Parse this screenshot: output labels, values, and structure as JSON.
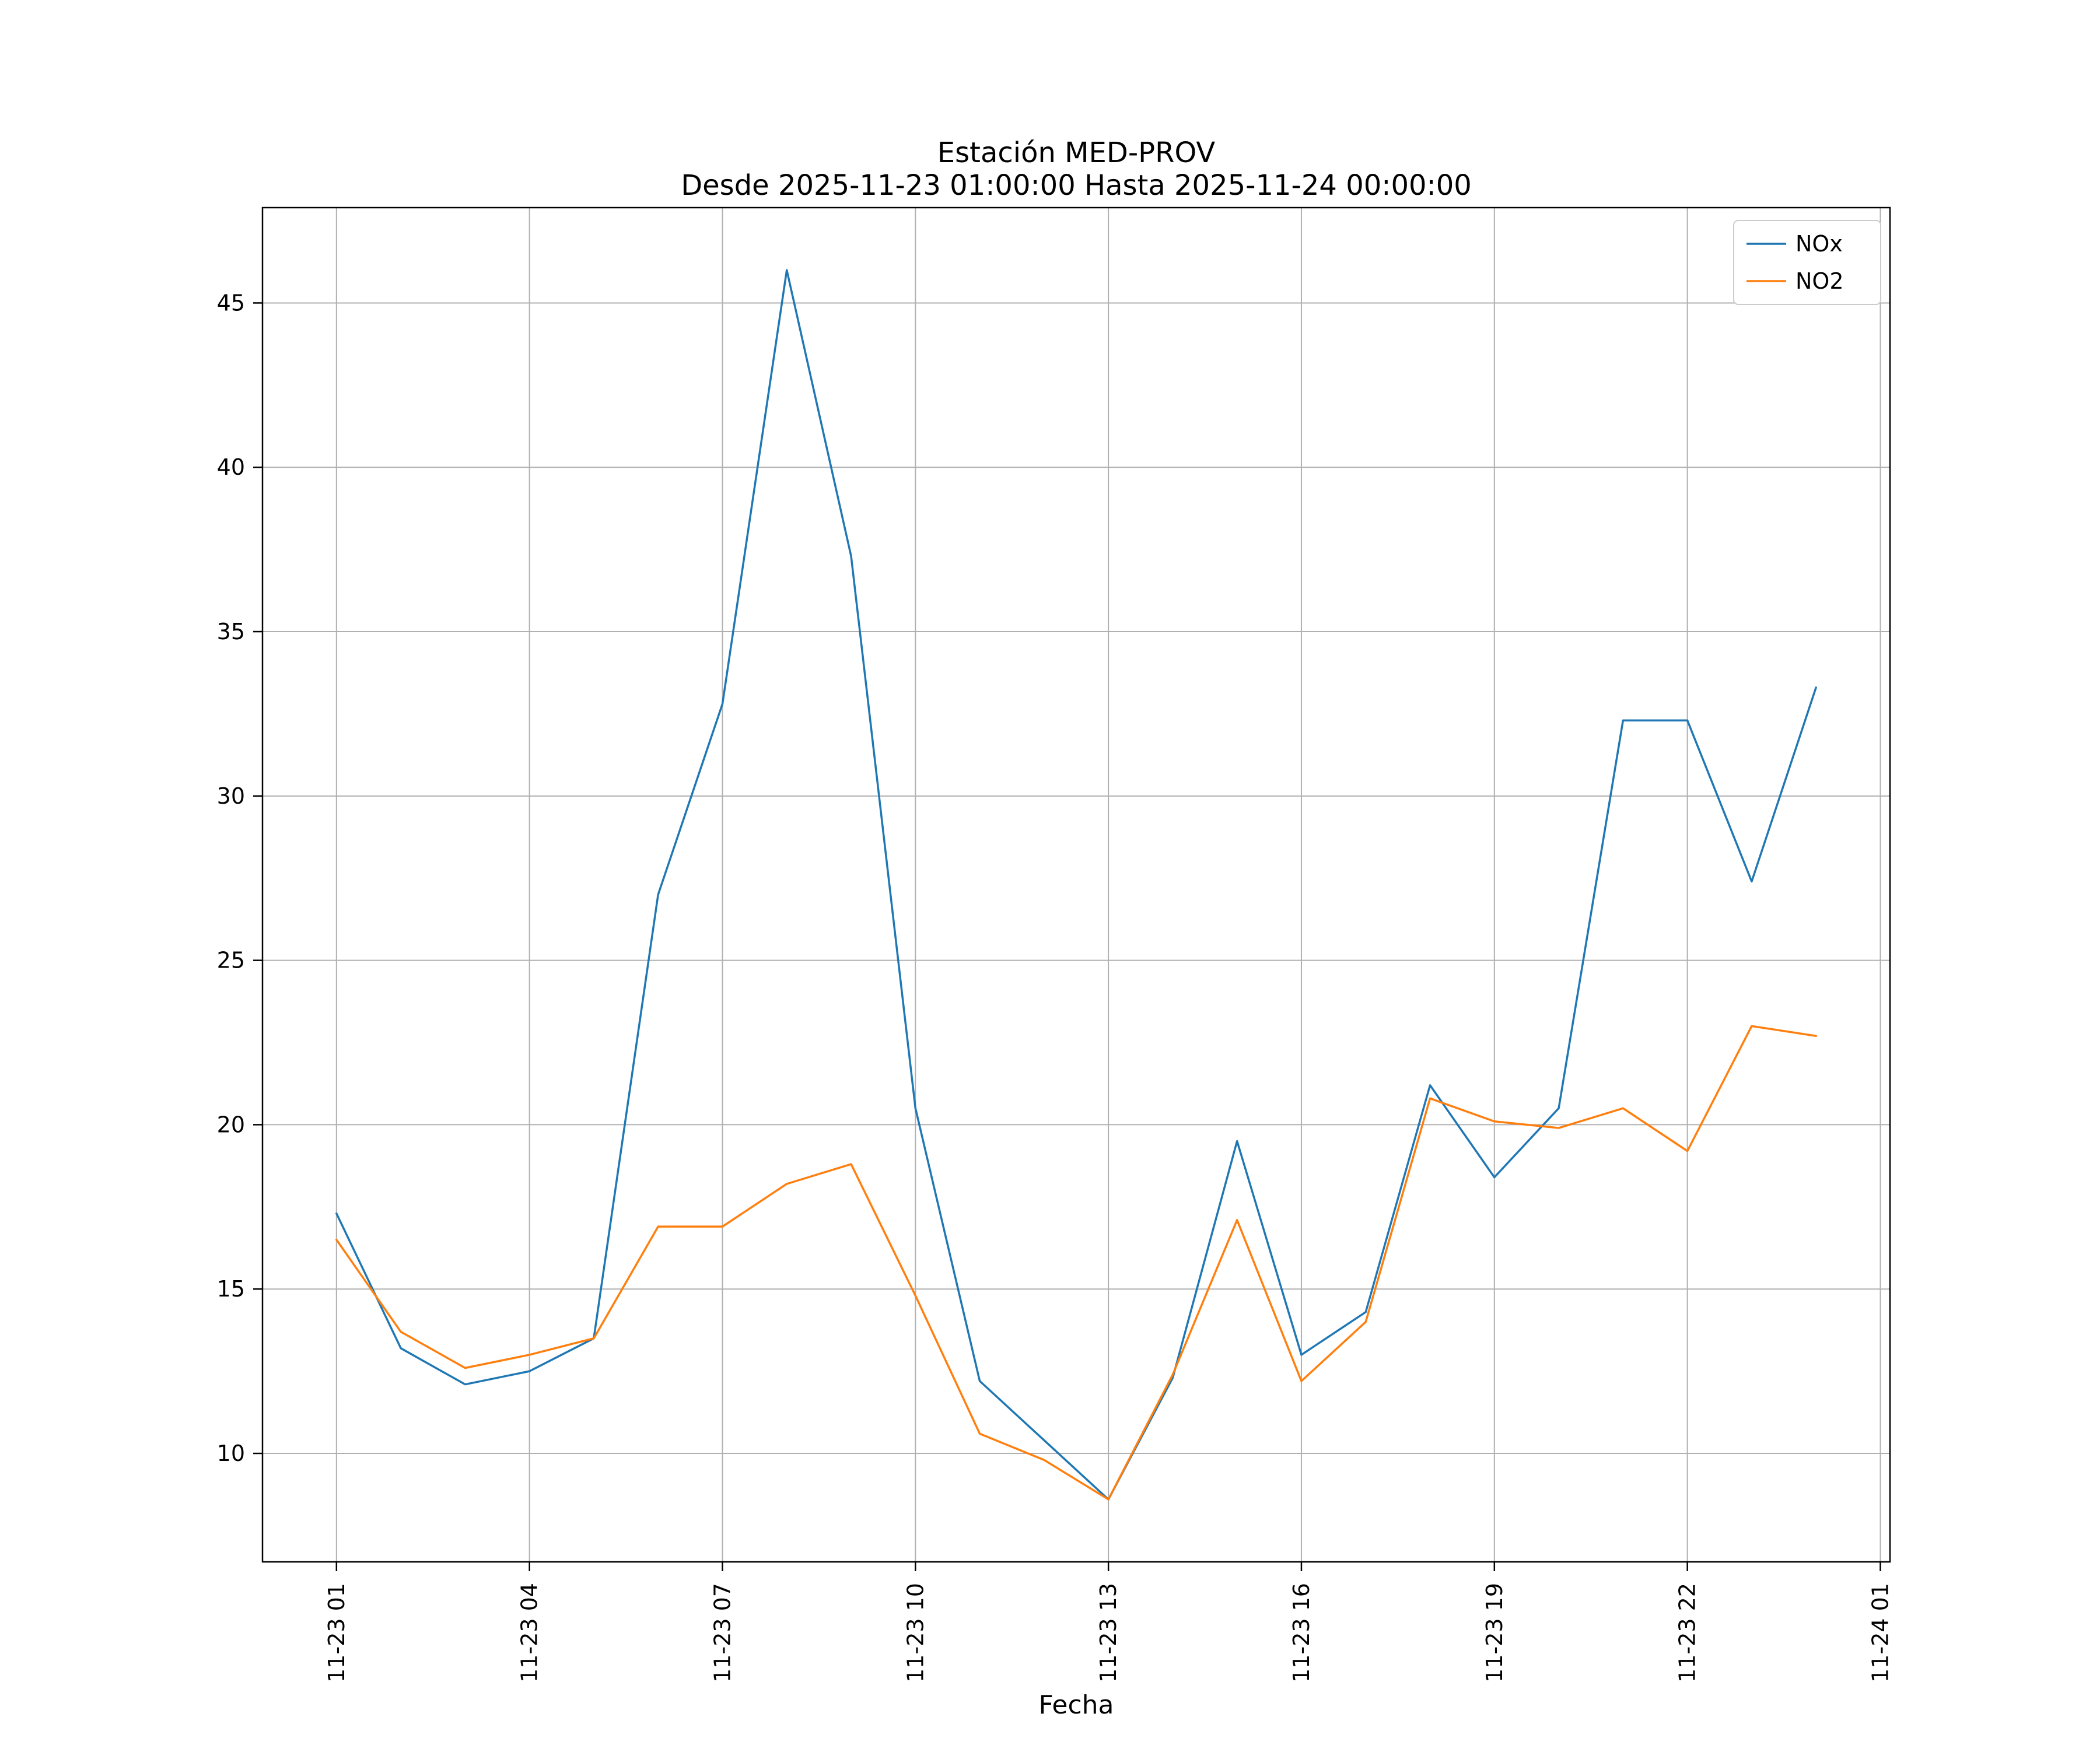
{
  "figure": {
    "title_line1": "Estación MED-PROV",
    "title_line2": "Desde 2025-11-23 01:00:00 Hasta 2025-11-24 00:00:00",
    "xlabel": "Fecha"
  },
  "chart_data": {
    "type": "line",
    "title": "Estación MED-PROV",
    "subtitle": "Desde 2025-11-23 01:00:00 Hasta 2025-11-24 00:00:00",
    "xlabel": "Fecha",
    "ylabel": "",
    "grid": true,
    "legend_position": "upper right",
    "xlim": [
      -0.15,
      25.15
    ],
    "ylim": [
      6.7,
      47.9
    ],
    "x_hours": [
      1,
      2,
      3,
      4,
      5,
      6,
      7,
      8,
      9,
      10,
      11,
      12,
      13,
      14,
      15,
      16,
      17,
      18,
      19,
      20,
      21,
      22,
      23,
      24
    ],
    "x_tick_hours": [
      1,
      4,
      7,
      10,
      13,
      16,
      19,
      22,
      25
    ],
    "x_tick_labels": [
      "11-23 01",
      "11-23 04",
      "11-23 07",
      "11-23 10",
      "11-23 13",
      "11-23 16",
      "11-23 19",
      "11-23 22",
      "11-24 01"
    ],
    "y_ticks": [
      10,
      15,
      20,
      25,
      30,
      35,
      40,
      45
    ],
    "series": [
      {
        "name": "NOx",
        "color": "#1f77b4",
        "values": [
          17.3,
          13.2,
          12.1,
          12.5,
          13.5,
          27.0,
          32.8,
          46.0,
          37.3,
          20.5,
          12.2,
          10.4,
          8.6,
          12.3,
          19.5,
          13.0,
          14.3,
          21.2,
          18.4,
          20.5,
          32.3,
          32.3,
          27.4,
          33.3
        ]
      },
      {
        "name": "NO2",
        "color": "#ff7f0e",
        "values": [
          16.5,
          13.7,
          12.6,
          13.0,
          13.5,
          16.9,
          16.9,
          18.2,
          18.8,
          14.8,
          10.6,
          9.8,
          8.6,
          12.4,
          17.1,
          12.2,
          14.0,
          20.8,
          20.1,
          19.9,
          20.5,
          19.2,
          23.0,
          22.7
        ]
      }
    ],
    "style": {
      "grid_color": "#b0b0b0",
      "frame_color": "#000000",
      "legend_border_color": "#cccccc",
      "background_color": "#ffffff"
    }
  }
}
